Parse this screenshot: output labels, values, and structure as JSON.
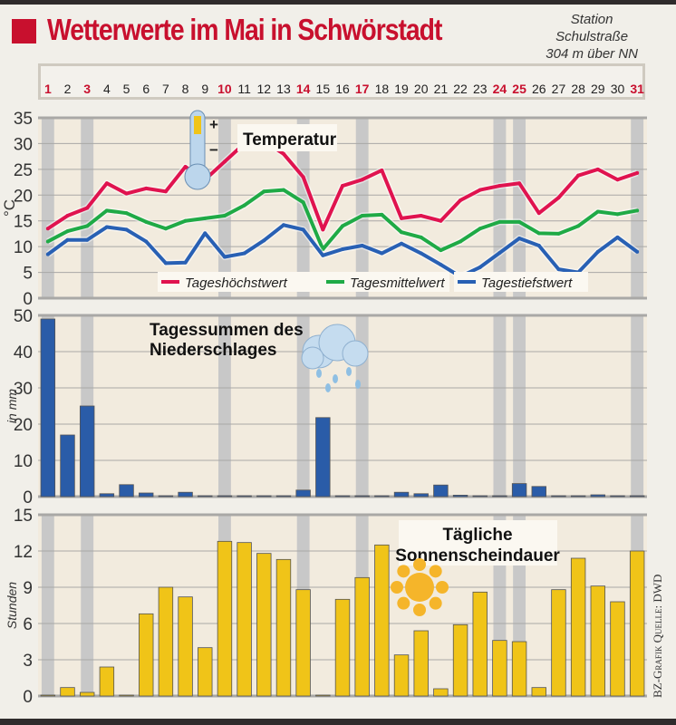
{
  "header": {
    "title": "Wetterwerte im Mai in Schwörstadt",
    "station": [
      "Station",
      "Schulstraße",
      "304 m über NN"
    ]
  },
  "days": {
    "labels": [
      "1",
      "2",
      "3",
      "4",
      "5",
      "6",
      "7",
      "8",
      "9",
      "10",
      "11",
      "12",
      "13",
      "14",
      "15",
      "16",
      "17",
      "18",
      "19",
      "20",
      "21",
      "22",
      "23",
      "24",
      "25",
      "26",
      "27",
      "28",
      "29",
      "30",
      "31"
    ],
    "highlighted": [
      1,
      3,
      10,
      14,
      17,
      24,
      25,
      31
    ]
  },
  "colors": {
    "red": "#c8102e",
    "high": "#e0134f",
    "mean": "#1faa46",
    "low": "#2860b4",
    "precip": "#2a5ca8",
    "sun": "#f0c418",
    "shade": "#c8c8c8"
  },
  "credit": "BZ-Grafik Quelle: DWD",
  "chart_data": [
    {
      "type": "line",
      "title": "Temperatur",
      "ylabel": "°C",
      "ylim": [
        0,
        35
      ],
      "yticks": [
        0,
        5,
        10,
        15,
        20,
        25,
        30,
        35
      ],
      "series": [
        {
          "name": "Tageshöchstwert",
          "values": [
            13.5,
            16,
            17.5,
            22.3,
            20.3,
            21.3,
            20.7,
            25.5,
            23,
            26.5,
            30,
            30.5,
            28,
            23.5,
            13.3,
            21.8,
            23,
            24.8,
            15.5,
            16,
            15,
            19,
            21,
            21.8,
            22.3,
            16.5,
            19.5,
            23.8,
            25,
            23,
            24.3
          ]
        },
        {
          "name": "Tagesmittelwert",
          "values": [
            11,
            13,
            14,
            17,
            16.5,
            14.8,
            13.5,
            15,
            15.5,
            16,
            18,
            20.7,
            21,
            18.6,
            9.5,
            14,
            16,
            16.2,
            12.8,
            11.8,
            9.3,
            11,
            13.5,
            14.8,
            14.8,
            12.6,
            12.5,
            14,
            16.8,
            16.3,
            17
          ]
        },
        {
          "name": "Tagestiefstwert",
          "values": [
            8.5,
            11.3,
            11.3,
            13.8,
            13.3,
            11,
            6.8,
            6.9,
            12.6,
            8,
            8.7,
            11.2,
            14.2,
            13.3,
            8.3,
            9.5,
            10.2,
            8.7,
            10.6,
            8.7,
            6.5,
            4.2,
            6,
            8.8,
            11.6,
            10.2,
            5.6,
            5,
            9,
            11.8,
            9
          ]
        }
      ]
    },
    {
      "type": "bar",
      "title": "Tagessummen des Niederschlages",
      "title_lines": [
        "Tagessummen des",
        "Niederschlages"
      ],
      "ylabel": "in mm",
      "ylim": [
        0,
        50
      ],
      "yticks": [
        0,
        10,
        20,
        30,
        40,
        50
      ],
      "values": [
        49,
        17,
        25,
        0.8,
        3.3,
        1,
        0.2,
        1.2,
        0.2,
        0.2,
        0.2,
        0.2,
        0.2,
        1.8,
        21.8,
        0.2,
        0.2,
        0.2,
        1.2,
        0.8,
        3.2,
        0.4,
        0.2,
        0.2,
        3.6,
        2.8,
        0.2,
        0.2,
        0.5,
        0.2,
        0.2
      ]
    },
    {
      "type": "bar",
      "title": "Tägliche Sonnenscheindauer",
      "title_lines": [
        "Tägliche",
        "Sonnenscheindauer"
      ],
      "ylabel": "Stunden",
      "ylim": [
        0,
        15
      ],
      "yticks": [
        0,
        3,
        6,
        9,
        12,
        15
      ],
      "values": [
        0,
        0.7,
        0.3,
        2.4,
        0,
        6.8,
        9,
        8.2,
        4,
        12.8,
        12.7,
        11.8,
        11.3,
        8.8,
        0,
        8,
        9.8,
        12.5,
        3.4,
        5.4,
        0.6,
        5.9,
        8.6,
        4.6,
        4.5,
        0.7,
        8.8,
        11.4,
        9.1,
        7.8,
        12
      ]
    }
  ]
}
